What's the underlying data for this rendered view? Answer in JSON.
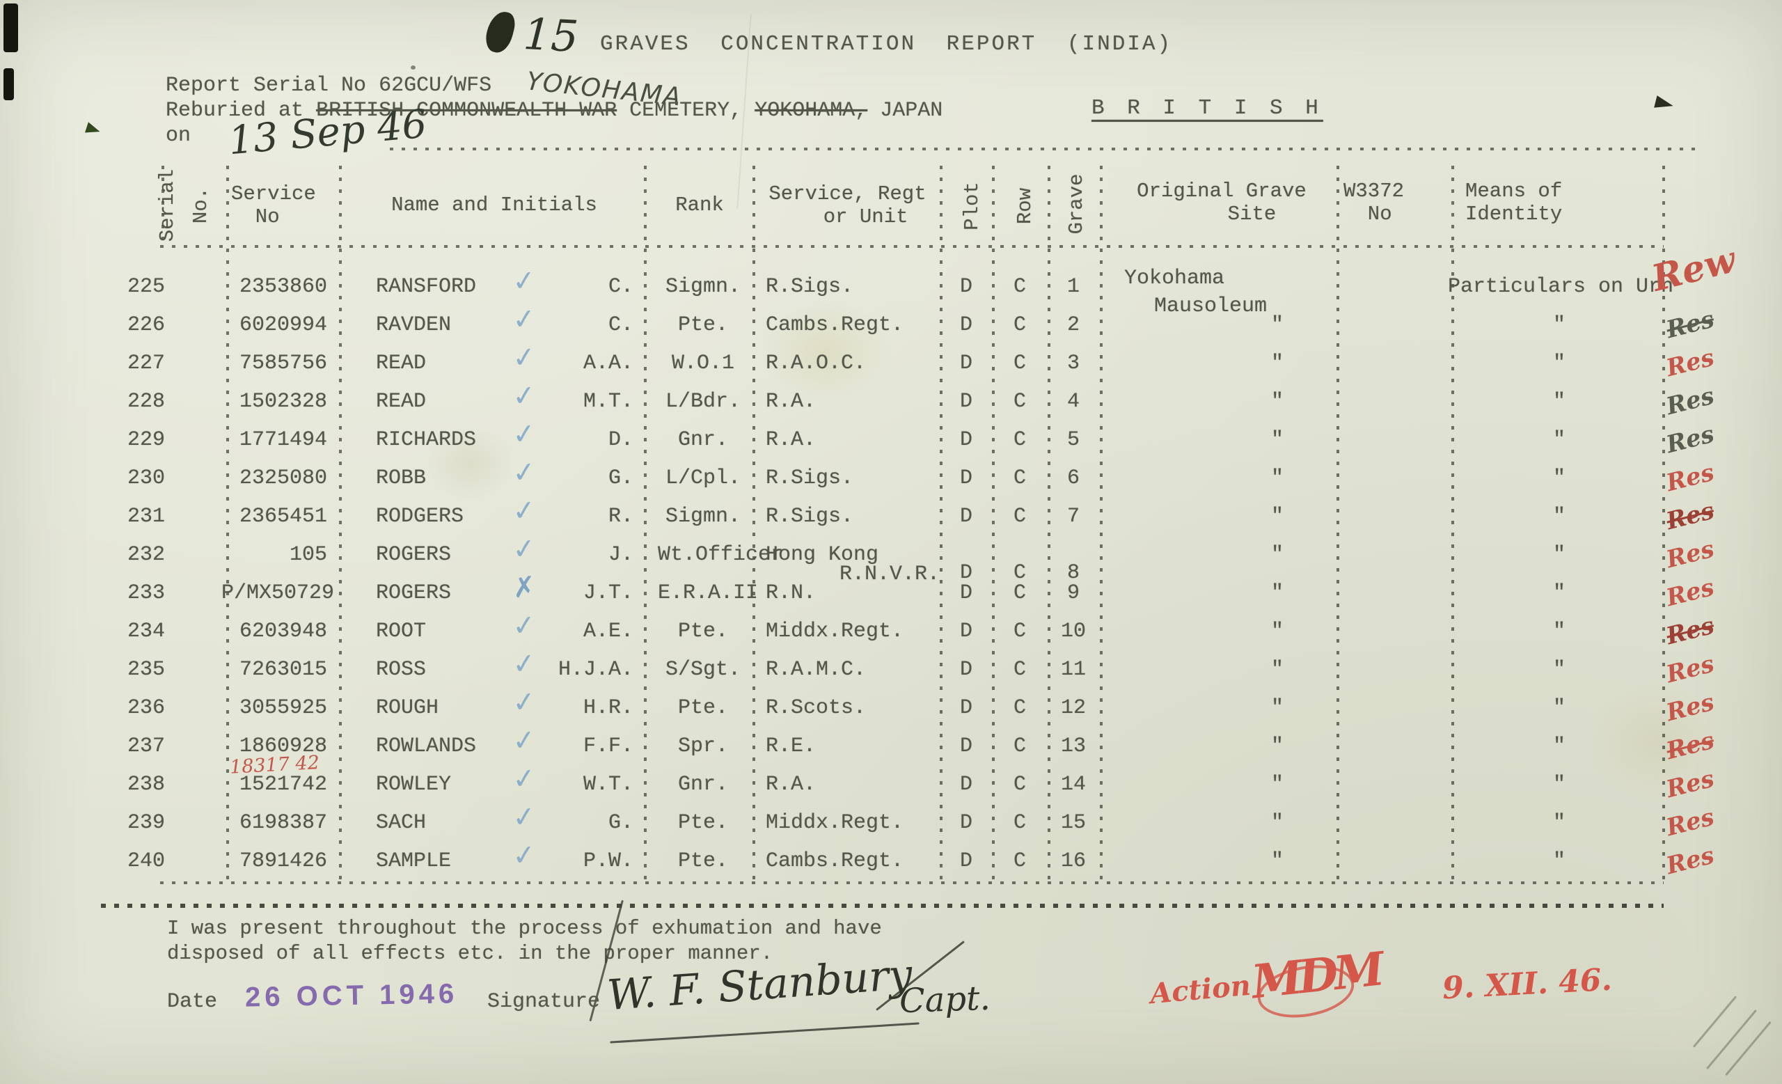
{
  "header": {
    "page_number": "15",
    "title": "GRAVES CONCENTRATION REPORT (INDIA)",
    "report_serial_label": "Report Serial No",
    "report_serial_value": "62GCU/WFS",
    "report_serial_handwritten": "YOKOHAMA",
    "reburied_label": "Reburied at",
    "reburied_struck_1": "BRITISH COMMONWEALTH WAR",
    "reburied_text_1": "CEMETERY,",
    "reburied_struck_2": "YOKOHAMA,",
    "reburied_text_2": "JAPAN",
    "nationality": "B R I T I S H",
    "on_label": "on",
    "on_date_handwritten": "13 Sep 46"
  },
  "table": {
    "headers": {
      "serial": "Serial\nNo.",
      "service_no": "Service\n  No",
      "name": "Name and Initials",
      "rank": "Rank",
      "unit": "Service, Regt\n   or Unit",
      "plot": "Plot",
      "row": "Row",
      "grave": "Grave",
      "site": "Original Grave\n     Site",
      "w3372": "W3372\n  No",
      "means": "Means of\nIdentity"
    },
    "rows": [
      {
        "serial": "225",
        "service_no": "2353860",
        "name": "RANSFORD",
        "check": "✓",
        "initials": "C.",
        "rank": "Sigmn.",
        "unit": "R.Sigs.",
        "plot": "D",
        "row": "C",
        "grave": "1",
        "site": "Yokohama",
        "site2": "Mausoleum",
        "w3372": "",
        "means": "Particulars on Urn"
      },
      {
        "serial": "226",
        "service_no": "6020994",
        "name": "RAVDEN",
        "check": "✓",
        "initials": "C.",
        "rank": "Pte.",
        "unit": "Cambs.Regt.",
        "plot": "D",
        "row": "C",
        "grave": "2",
        "site": "\"",
        "w3372": "",
        "means": "\""
      },
      {
        "serial": "227",
        "service_no": "7585756",
        "name": "READ",
        "check": "✓",
        "initials": "A.A.",
        "rank": "W.O.1",
        "unit": "R.A.O.C.",
        "plot": "D",
        "row": "C",
        "grave": "3",
        "site": "\"",
        "w3372": "",
        "means": "\""
      },
      {
        "serial": "228",
        "service_no": "1502328",
        "name": "READ",
        "check": "✓",
        "initials": "M.T.",
        "rank": "L/Bdr.",
        "unit": "R.A.",
        "plot": "D",
        "row": "C",
        "grave": "4",
        "site": "\"",
        "w3372": "",
        "means": "\""
      },
      {
        "serial": "229",
        "service_no": "1771494",
        "name": "RICHARDS",
        "check": "✓",
        "initials": "D.",
        "rank": "Gnr.",
        "unit": "R.A.",
        "plot": "D",
        "row": "C",
        "grave": "5",
        "site": "\"",
        "w3372": "",
        "means": "\""
      },
      {
        "serial": "230",
        "service_no": "2325080",
        "name": "ROBB",
        "check": "✓",
        "initials": "G.",
        "rank": "L/Cpl.",
        "unit": "R.Sigs.",
        "plot": "D",
        "row": "C",
        "grave": "6",
        "site": "\"",
        "w3372": "",
        "means": "\""
      },
      {
        "serial": "231",
        "service_no": "2365451",
        "name": "RODGERS",
        "check": "✓",
        "initials": "R.",
        "rank": "Sigmn.",
        "unit": "R.Sigs.",
        "plot": "D",
        "row": "C",
        "grave": "7",
        "site": "\"",
        "w3372": "",
        "means": "\""
      },
      {
        "serial": "232",
        "service_no": "105",
        "name": "ROGERS",
        "check": "✓",
        "initials": "J.",
        "rank": "Wt.Officer",
        "unit": "Hong Kong",
        "unit2": "R.N.V.R.",
        "plot": "D",
        "row": "C",
        "grave": "8",
        "site": "\"",
        "w3372": "",
        "means": "\""
      },
      {
        "serial": "233",
        "service_no": "P/MX50729",
        "name": "ROGERS",
        "check": "✗",
        "initials": "J.T.",
        "rank": "E.R.A.II",
        "unit": "R.N.",
        "plot": "D",
        "row": "C",
        "grave": "9",
        "site": "\"",
        "w3372": "",
        "means": "\""
      },
      {
        "serial": "234",
        "service_no": "6203948",
        "name": "ROOT",
        "check": "✓",
        "initials": "A.E.",
        "rank": "Pte.",
        "unit": "Middx.Regt.",
        "plot": "D",
        "row": "C",
        "grave": "10",
        "site": "\"",
        "w3372": "",
        "means": "\""
      },
      {
        "serial": "235",
        "service_no": "7263015",
        "name": "ROSS",
        "check": "✓",
        "initials": "H.J.A.",
        "rank": "S/Sgt.",
        "unit": "R.A.M.C.",
        "plot": "D",
        "row": "C",
        "grave": "11",
        "site": "\"",
        "w3372": "",
        "means": "\""
      },
      {
        "serial": "236",
        "service_no": "3055925",
        "name": "ROUGH",
        "check": "✓",
        "initials": "H.R.",
        "rank": "Pte.",
        "unit": "R.Scots.",
        "plot": "D",
        "row": "C",
        "grave": "12",
        "site": "\"",
        "w3372": "",
        "means": "\""
      },
      {
        "serial": "237",
        "service_no": "1860928",
        "name": "ROWLANDS",
        "check": "✓",
        "initials": "F.F.",
        "rank": "Spr.",
        "unit": "R.E.",
        "plot": "D",
        "row": "C",
        "grave": "13",
        "site": "\"",
        "w3372": "",
        "means": "\""
      },
      {
        "serial": "238",
        "service_no": "1521742",
        "red_note": "18317 42",
        "name": "ROWLEY",
        "check": "✓",
        "initials": "W.T.",
        "rank": "Gnr.",
        "unit": "R.A.",
        "plot": "D",
        "row": "C",
        "grave": "14",
        "site": "\"",
        "w3372": "",
        "means": "\""
      },
      {
        "serial": "239",
        "service_no": "6198387",
        "name": "SACH",
        "check": "✓",
        "initials": "G.",
        "rank": "Pte.",
        "unit": "Middx.Regt.",
        "plot": "D",
        "row": "C",
        "grave": "15",
        "site": "\"",
        "w3372": "",
        "means": "\""
      },
      {
        "serial": "240",
        "service_no": "7891426",
        "name": "SAMPLE",
        "check": "✓",
        "initials": "P.W.",
        "rank": "Pte.",
        "unit": "Cambs.Regt.",
        "plot": "D",
        "row": "C",
        "grave": "16",
        "site": "\"",
        "w3372": "",
        "means": "\""
      }
    ]
  },
  "footer": {
    "statement": "I was present throughout the process of exhumation and have\ndisposed of all effects etc. in the proper manner.",
    "date_label": "Date",
    "date_stamp": "26 OCT 1946",
    "signature_label": "Signature",
    "signature": "W. F. Stanbury",
    "signature_rank": "Capt.",
    "action_label": "Action",
    "action_monogram": "MDM",
    "action_date": "9. XII. 46."
  },
  "annotations": {
    "margin_marks": [
      {
        "text": "Rew",
        "ink": "red",
        "large": true
      },
      {
        "text": "Res",
        "ink": "pencil",
        "strike": true
      },
      {
        "text": "Res",
        "ink": "red"
      },
      {
        "text": "Res",
        "ink": "pencil"
      },
      {
        "text": "Res",
        "ink": "pencil"
      },
      {
        "text": "Res",
        "ink": "red"
      },
      {
        "text": "Res",
        "ink": "darkred",
        "strike": true
      },
      {
        "text": "Res",
        "ink": "red"
      },
      {
        "text": "Res",
        "ink": "red"
      },
      {
        "text": "Res",
        "ink": "darkred",
        "strike": true
      },
      {
        "text": "Res",
        "ink": "red"
      },
      {
        "text": "Res",
        "ink": "red"
      },
      {
        "text": "Res",
        "ink": "red",
        "strike": true
      },
      {
        "text": "Res",
        "ink": "red"
      },
      {
        "text": "Res",
        "ink": "red"
      },
      {
        "text": "Res",
        "ink": "red"
      }
    ]
  },
  "colors": {
    "paper": "#e4e6d7",
    "typed_ink": "#53574a",
    "red_ink": "#c4574a",
    "pencil": "#5a5e50",
    "stamp_purple": "#7e60ab",
    "check_blue": "#7fa6c9",
    "signature_ink": "#30342a"
  }
}
